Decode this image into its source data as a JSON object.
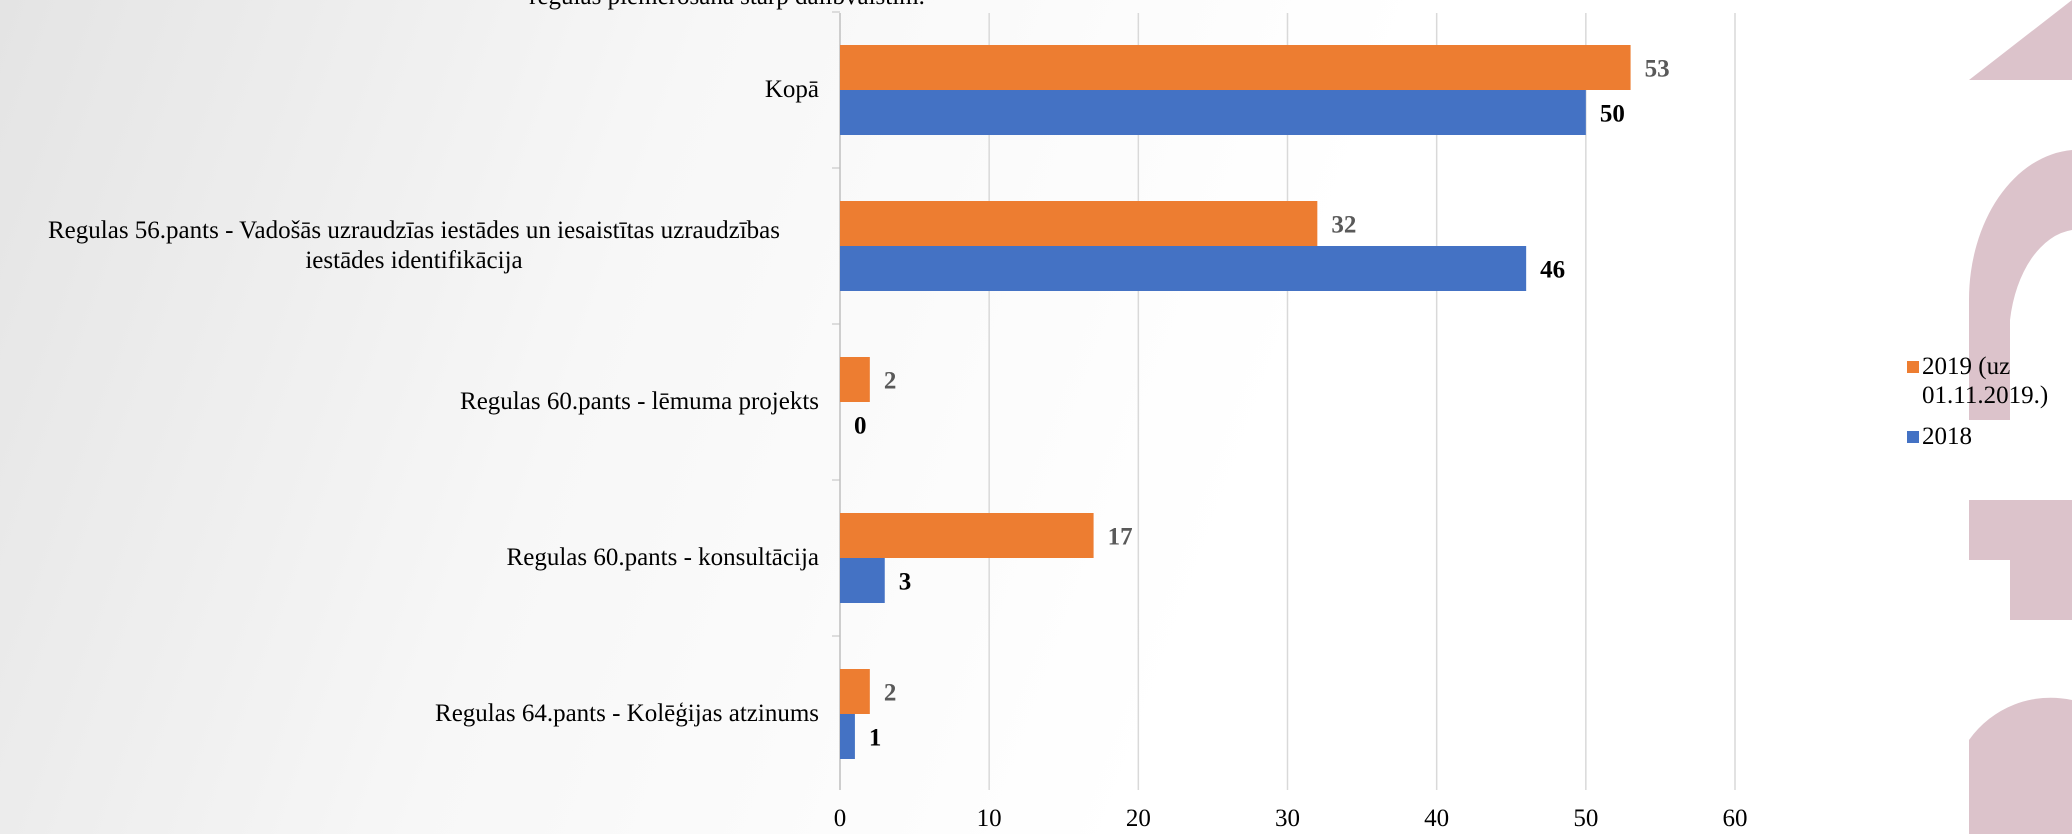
{
  "chart_data": {
    "type": "hbar",
    "title": "regulas piemērošanā starp dalībvalstīm.",
    "categories": [
      "Kopā",
      "Regulas 56.pants - Vadošās uzraudzīas iestādes un iesaistītas uzraudzības iestādes identifikācija",
      "Regulas 60.pants - lēmuma projekts",
      "Regulas 60.pants - konsultācija",
      "Regulas 64.pants - Kolēģijas atzinums"
    ],
    "series": [
      {
        "name": "2019 (uz 01.11.2019.)",
        "color": "#ed7d31",
        "values": [
          53,
          32,
          2,
          17,
          2
        ]
      },
      {
        "name": "2018",
        "color": "#4472c4",
        "values": [
          50,
          46,
          0,
          3,
          1
        ]
      }
    ],
    "xlim": [
      0,
      60
    ],
    "xticks": [
      0,
      10,
      20,
      30,
      40,
      50,
      60
    ],
    "grid": true,
    "legend": "right"
  }
}
